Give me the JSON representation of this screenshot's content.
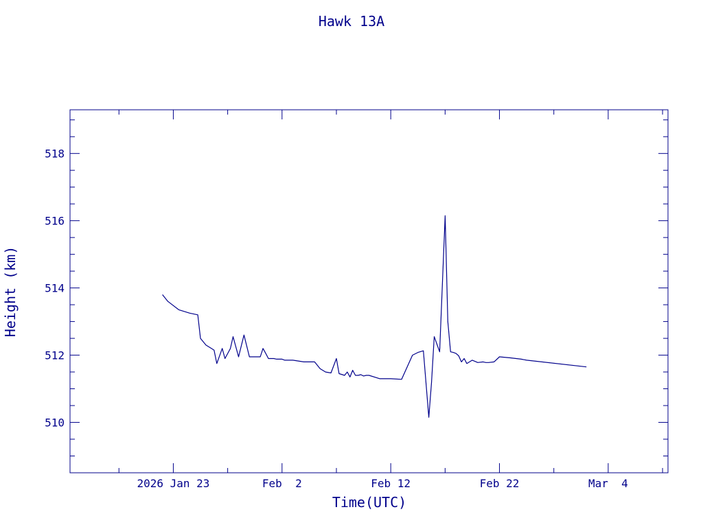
{
  "chart_data": {
    "type": "line",
    "title": "Hawk 13A",
    "xlabel": "Time(UTC)",
    "ylabel": "Height (km)",
    "color": "#00008b",
    "x_tick_labels": [
      {
        "date": "2026-01-23",
        "label": "2026 Jan 23"
      },
      {
        "date": "2026-02-02",
        "label": "Feb  2"
      },
      {
        "date": "2026-02-12",
        "label": "Feb 12"
      },
      {
        "date": "2026-02-22",
        "label": "Feb 22"
      },
      {
        "date": "2026-03-04",
        "label": "Mar  4"
      }
    ],
    "x_minor_tick_days": 5,
    "xlim": [
      "2026-01-13T12:00",
      "2026-03-09T12:00"
    ],
    "ylim": [
      508.5,
      519.3
    ],
    "y_ticks": [
      510,
      512,
      514,
      516,
      518
    ],
    "y_minor_step": 0.5,
    "grid": false,
    "series": [
      {
        "x": [
          "2026-01-22T00:00",
          "2026-01-22T12:00",
          "2026-01-23T12:00",
          "2026-01-24T12:00",
          "2026-01-25T06:00",
          "2026-01-25T12:00",
          "2026-01-26T00:00",
          "2026-01-26T12:00",
          "2026-01-26T18:00",
          "2026-01-27T00:00",
          "2026-01-27T12:00",
          "2026-01-27T18:00",
          "2026-01-28T06:00",
          "2026-01-28T12:00",
          "2026-01-29T00:00",
          "2026-01-29T12:00",
          "2026-01-30T00:00",
          "2026-01-31T00:00",
          "2026-01-31T06:00",
          "2026-01-31T12:00",
          "2026-01-31T18:00",
          "2026-02-01T06:00",
          "2026-02-01T12:00",
          "2026-02-02T00:00",
          "2026-02-02T06:00",
          "2026-02-03T00:00",
          "2026-02-04T00:00",
          "2026-02-05T00:00",
          "2026-02-05T12:00",
          "2026-02-06T00:00",
          "2026-02-06T12:00",
          "2026-02-07T00:00",
          "2026-02-07T06:00",
          "2026-02-07T18:00",
          "2026-02-08T00:00",
          "2026-02-08T06:00",
          "2026-02-08T12:00",
          "2026-02-08T18:00",
          "2026-02-09T00:00",
          "2026-02-09T06:00",
          "2026-02-09T12:00",
          "2026-02-09T18:00",
          "2026-02-10T00:00",
          "2026-02-11T00:00",
          "2026-02-12T00:00",
          "2026-02-13T00:00",
          "2026-02-14T00:00",
          "2026-02-14T12:00",
          "2026-02-15T00:00",
          "2026-02-15T12:00",
          "2026-02-15T18:00",
          "2026-02-16T00:00",
          "2026-02-16T12:00",
          "2026-02-17T00:00",
          "2026-02-17T06:00",
          "2026-02-17T12:00",
          "2026-02-17T18:00",
          "2026-02-18T00:00",
          "2026-02-18T06:00",
          "2026-02-18T12:00",
          "2026-02-18T18:00",
          "2026-02-19T00:00",
          "2026-02-19T12:00",
          "2026-02-20T00:00",
          "2026-02-20T12:00",
          "2026-02-20T18:00",
          "2026-02-21T00:00",
          "2026-02-21T12:00",
          "2026-02-22T00:00",
          "2026-02-23T00:00",
          "2026-02-24T00:00",
          "2026-02-24T12:00",
          "2026-03-02T00:00"
        ],
        "y": [
          513.8,
          513.6,
          513.35,
          513.25,
          513.2,
          512.5,
          512.3,
          512.2,
          512.15,
          511.75,
          512.2,
          511.9,
          512.2,
          512.55,
          511.95,
          512.6,
          511.95,
          511.95,
          512.2,
          512.05,
          511.9,
          511.9,
          511.88,
          511.88,
          511.85,
          511.85,
          511.8,
          511.8,
          511.6,
          511.5,
          511.47,
          511.9,
          511.45,
          511.4,
          511.5,
          511.35,
          511.55,
          511.4,
          511.4,
          511.42,
          511.38,
          511.4,
          511.4,
          511.3,
          511.3,
          511.28,
          512.0,
          512.08,
          512.13,
          510.15,
          511.2,
          512.55,
          512.1,
          516.15,
          513.0,
          512.1,
          512.08,
          512.05,
          511.98,
          511.8,
          511.9,
          511.75,
          511.85,
          511.78,
          511.8,
          511.78,
          511.78,
          511.8,
          511.95,
          511.92,
          511.88,
          511.85,
          511.65
        ]
      }
    ]
  }
}
